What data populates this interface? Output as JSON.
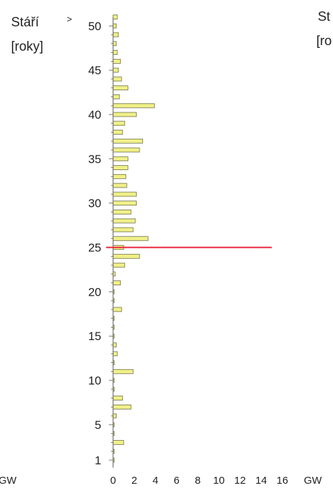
{
  "chart_data": {
    "type": "bar",
    "orientation": "horizontal",
    "ylabel": "Stáří",
    "ylabel_unit": "[roky]",
    "xlabel": "GW",
    "left_edge_label": "GW",
    "right_title": "St",
    "right_unit": "[ro",
    "y_top_label": "> 50",
    "y_ticks": [
      1,
      5,
      10,
      15,
      20,
      25,
      30,
      35,
      40,
      45,
      50
    ],
    "y_tick_labels": [
      "1",
      "5",
      "10",
      "15",
      "20",
      "25",
      "30",
      "35",
      "40",
      "45",
      "50"
    ],
    "x_ticks": [
      0,
      2,
      4,
      6,
      8,
      10,
      12,
      14,
      16
    ],
    "x_tick_labels": [
      "0",
      "2",
      "4",
      "6",
      "8",
      "10",
      "12",
      "14",
      "16"
    ],
    "xlim": [
      0,
      16
    ],
    "ylim": [
      0,
      51
    ],
    "reference_line": {
      "y": 25,
      "x_end": 15,
      "color": "#e8203a"
    },
    "bar_fill": "#f0f088",
    "bar_stroke": "#6f6f4a",
    "ages": [
      1,
      2,
      3,
      4,
      5,
      6,
      7,
      8,
      9,
      10,
      11,
      12,
      13,
      14,
      15,
      16,
      17,
      18,
      19,
      20,
      21,
      22,
      23,
      24,
      25,
      26,
      27,
      28,
      29,
      30,
      31,
      32,
      33,
      34,
      35,
      36,
      37,
      38,
      39,
      40,
      41,
      42,
      43,
      44,
      45,
      46,
      47,
      48,
      49,
      50,
      51
    ],
    "values": [
      0.1,
      0.1,
      1.0,
      0.1,
      0.1,
      0.3,
      1.7,
      0.9,
      0.1,
      0.1,
      1.9,
      0.1,
      0.4,
      0.3,
      0.1,
      0.1,
      0.1,
      0.8,
      0.1,
      0.1,
      0.7,
      0.2,
      1.1,
      2.5,
      1.0,
      3.3,
      1.9,
      2.1,
      1.7,
      2.2,
      2.2,
      1.3,
      1.2,
      1.4,
      1.4,
      2.5,
      2.8,
      0.9,
      1.1,
      2.2,
      3.9,
      0.6,
      1.4,
      0.8,
      0.5,
      0.7,
      0.4,
      0.3,
      0.5,
      0.3,
      0.4
    ]
  }
}
